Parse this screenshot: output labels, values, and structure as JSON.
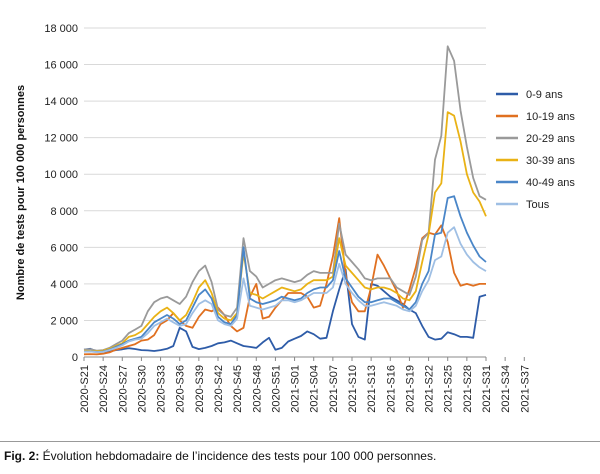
{
  "chart_data": {
    "type": "line",
    "ylabel": "Nombre de tests pour 100 000 personnes",
    "ylim": [
      0,
      18000
    ],
    "yticks": [
      0,
      2000,
      4000,
      6000,
      8000,
      10000,
      12000,
      14000,
      16000,
      18000
    ],
    "ytick_labels": [
      "0",
      "2 000",
      "4 000",
      "6 000",
      "8 000",
      "10 000",
      "12 000",
      "14 000",
      "16 000",
      "18 000"
    ],
    "x_start_week": 21,
    "xtick_labels": [
      "2020-S21",
      "2020-S24",
      "2020-S27",
      "2020-S30",
      "2020-S33",
      "2020-S36",
      "2020-S39",
      "2020-S42",
      "2020-S45",
      "2020-S48",
      "2020-S51",
      "2021-S01",
      "2021-S04",
      "2021-S07",
      "2021-S10",
      "2021-S13",
      "2021-S16",
      "2021-S19",
      "2021-S22",
      "2021-S25",
      "2021-S28",
      "2021-S31",
      "2021-S34",
      "2021-S37"
    ],
    "grid": true,
    "legend_position": "right",
    "series": [
      {
        "name": "0-9 ans",
        "color": "#2e5ca8",
        "values": [
          400,
          450,
          300,
          280,
          320,
          380,
          420,
          480,
          440,
          380,
          360,
          330,
          380,
          450,
          600,
          1600,
          1400,
          550,
          430,
          500,
          600,
          750,
          800,
          900,
          750,
          600,
          550,
          500,
          800,
          1050,
          400,
          500,
          850,
          1000,
          1150,
          1400,
          1250,
          1000,
          1050,
          2500,
          3700,
          4800,
          1800,
          1100,
          950,
          4000,
          3900,
          3600,
          3300,
          3100,
          2900,
          2600,
          2400,
          1700,
          1100,
          950,
          1000,
          1350,
          1250,
          1100,
          1100,
          1050,
          3300,
          3400
        ]
      },
      {
        "name": "10-19 ans",
        "color": "#e07020",
        "values": [
          150,
          160,
          150,
          180,
          250,
          400,
          500,
          600,
          700,
          900,
          950,
          1200,
          1800,
          2000,
          2400,
          2000,
          1700,
          1600,
          2200,
          2600,
          2500,
          2700,
          2300,
          1700,
          1400,
          1600,
          3300,
          4000,
          2100,
          2200,
          2700,
          3100,
          3500,
          3500,
          3500,
          3300,
          2700,
          2800,
          4000,
          5500,
          7600,
          4500,
          3000,
          2500,
          2500,
          3800,
          5600,
          5000,
          4300,
          3600,
          2700,
          3700,
          4900,
          6500,
          6800,
          6700,
          7200,
          6300,
          4600,
          3900,
          4000,
          3900,
          4000,
          4000
        ]
      },
      {
        "name": "20-29 ans",
        "color": "#9a9a9a",
        "values": [
          400,
          420,
          350,
          380,
          500,
          700,
          900,
          1300,
          1500,
          1700,
          2500,
          3000,
          3200,
          3300,
          3100,
          2900,
          3300,
          4100,
          4700,
          5000,
          4100,
          2600,
          2300,
          2200,
          2700,
          6500,
          4700,
          4400,
          3800,
          4000,
          4200,
          4300,
          4200,
          4100,
          4200,
          4500,
          4700,
          4600,
          4600,
          4600,
          7300,
          5600,
          5200,
          4800,
          4300,
          4200,
          4300,
          4300,
          4300,
          3800,
          3600,
          3400,
          4400,
          6400,
          6800,
          10800,
          12100,
          17000,
          16200,
          13500,
          11500,
          9800,
          8800,
          8600
        ]
      },
      {
        "name": "30-39 ans",
        "color": "#e9b215",
        "values": [
          350,
          330,
          320,
          350,
          450,
          600,
          750,
          1100,
          1200,
          1400,
          1800,
          2200,
          2500,
          2700,
          2400,
          2000,
          2300,
          3000,
          3800,
          4200,
          3500,
          2400,
          2100,
          2000,
          2400,
          5700,
          3500,
          3400,
          3200,
          3400,
          3600,
          3800,
          3700,
          3600,
          3700,
          4000,
          4200,
          4200,
          4200,
          4400,
          6500,
          5000,
          4600,
          4200,
          3800,
          3700,
          3800,
          3800,
          3700,
          3500,
          3200,
          3100,
          3600,
          5200,
          6700,
          9000,
          9500,
          13400,
          13200,
          11800,
          10000,
          9000,
          8500,
          7700
        ]
      },
      {
        "name": "40-49 ans",
        "color": "#4a86c8",
        "values": [
          300,
          300,
          280,
          300,
          400,
          550,
          700,
          900,
          1000,
          1100,
          1500,
          1900,
          2100,
          2300,
          2100,
          1800,
          2000,
          2700,
          3400,
          3700,
          3200,
          2200,
          1900,
          1800,
          2300,
          6000,
          3200,
          3000,
          2900,
          3000,
          3100,
          3300,
          3200,
          3100,
          3200,
          3500,
          3700,
          3800,
          3800,
          4200,
          5800,
          4300,
          3800,
          3300,
          3000,
          3000,
          3100,
          3200,
          3200,
          3000,
          2800,
          2600,
          3000,
          4000,
          4700,
          6700,
          6800,
          8700,
          8800,
          7700,
          6800,
          6100,
          5500,
          5200
        ]
      },
      {
        "name": "Tous",
        "color": "#9fbfe4",
        "values": [
          300,
          300,
          260,
          280,
          380,
          500,
          640,
          850,
          950,
          1000,
          1300,
          1700,
          1900,
          2100,
          1900,
          1700,
          1800,
          2400,
          2900,
          3100,
          2900,
          2000,
          1800,
          1700,
          2100,
          4300,
          2800,
          2700,
          2600,
          2700,
          2800,
          3100,
          3100,
          3000,
          3100,
          3300,
          3500,
          3500,
          3500,
          3800,
          5100,
          4000,
          3500,
          3100,
          2800,
          2800,
          2900,
          3000,
          2900,
          2800,
          2600,
          2500,
          2800,
          3600,
          4200,
          5300,
          5500,
          6800,
          7100,
          6200,
          5600,
          5200,
          4900,
          4700
        ]
      }
    ]
  },
  "caption": {
    "label": "Fig. 2:",
    "text": " Évolution hebdomadaire de l’incidence des tests pour 100 000 personnes."
  }
}
